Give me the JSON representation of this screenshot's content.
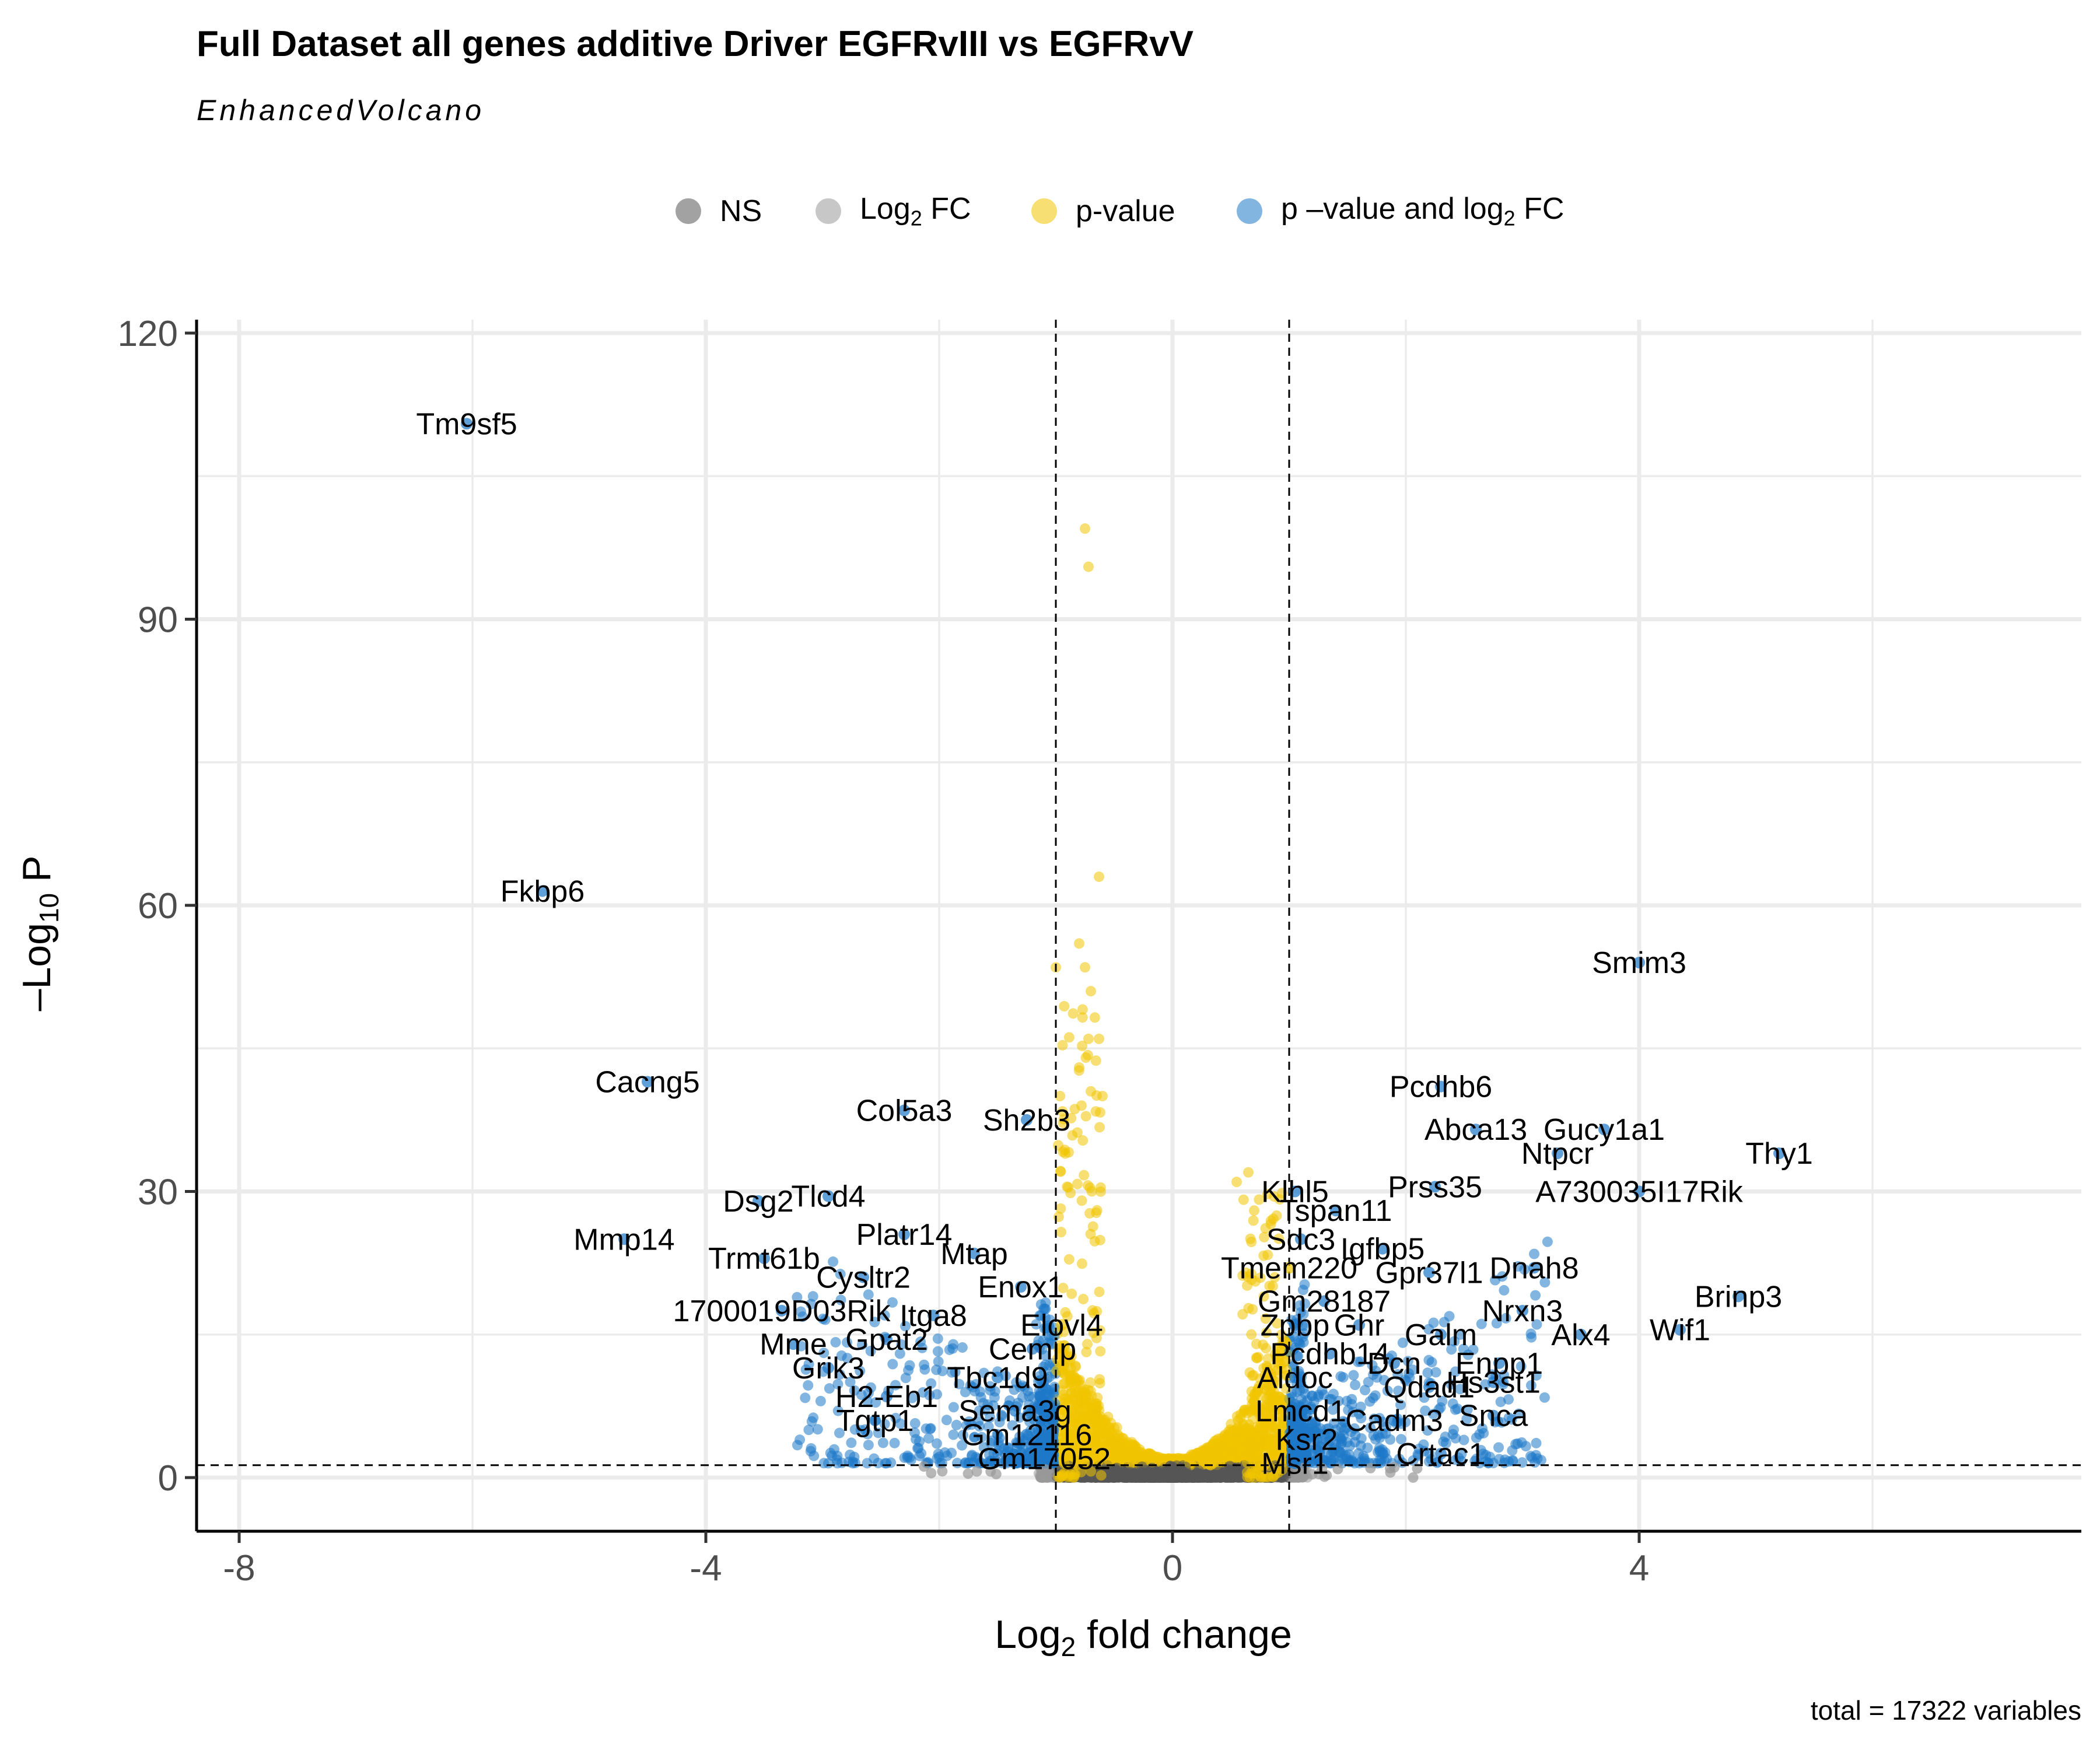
{
  "chart_data": {
    "type": "scatter",
    "title": "Full Dataset all genes additive Driver EGFRvIII vs EGFRvV",
    "subtitle": "EnhancedVolcano",
    "caption": "total = 17322 variables",
    "xlabel": {
      "pre": "Log",
      "sub": "2",
      "post": " fold change"
    },
    "ylabel": {
      "pre": "–Log",
      "sub": "10",
      "post": " P"
    },
    "xlim": [
      -8.3,
      7.8
    ],
    "ylim": [
      -5.5,
      122
    ],
    "xticks": [
      -8,
      -4,
      0,
      4
    ],
    "yticks": [
      0,
      30,
      60,
      90,
      120
    ],
    "grid": true,
    "legend_position": "top",
    "thresholds": {
      "fc": [
        -1,
        1
      ],
      "p": 1.3
    },
    "colors": {
      "NS": "#555555",
      "FC": "#999999",
      "P": "#f0c400",
      "both": "#1d78c8"
    },
    "legend": [
      {
        "key": "NS",
        "pre": "NS",
        "sub": "",
        "post": ""
      },
      {
        "key": "FC",
        "pre": "Log",
        "sub": "2",
        "post": " FC"
      },
      {
        "key": "P",
        "pre": "p-value",
        "sub": "",
        "post": ""
      },
      {
        "key": "both",
        "pre": "p –value and log",
        "sub": "2",
        "post": " FC"
      }
    ],
    "labeled_points": [
      {
        "gene": "Tm9sf5",
        "x": -6.05,
        "y": 110.5
      },
      {
        "gene": "Fkbp6",
        "x": -5.4,
        "y": 61.5
      },
      {
        "gene": "Cacng5",
        "x": -4.5,
        "y": 41.5
      },
      {
        "gene": "Col5a3",
        "x": -2.3,
        "y": 38.5
      },
      {
        "gene": "Sh2b3",
        "x": -1.25,
        "y": 37.5
      },
      {
        "gene": "Dsg2",
        "x": -3.55,
        "y": 29.0
      },
      {
        "gene": "Tlcd4",
        "x": -2.95,
        "y": 29.5
      },
      {
        "gene": "Mmp14",
        "x": -4.7,
        "y": 25.0
      },
      {
        "gene": "Platr14",
        "x": -2.3,
        "y": 25.5
      },
      {
        "gene": "Mtap",
        "x": -1.7,
        "y": 23.5
      },
      {
        "gene": "Trmt61b",
        "x": -3.5,
        "y": 23.0
      },
      {
        "gene": "Cysltr2",
        "x": -2.65,
        "y": 21.0
      },
      {
        "gene": "Enox1",
        "x": -1.3,
        "y": 20.0
      },
      {
        "gene": "1700019D03Rik",
        "x": -3.35,
        "y": 17.5
      },
      {
        "gene": "Itga8",
        "x": -2.05,
        "y": 17.0
      },
      {
        "gene": "Elovl4",
        "x": -0.95,
        "y": 16.0
      },
      {
        "gene": "Mme",
        "x": -3.25,
        "y": 14.0
      },
      {
        "gene": "Gpat2",
        "x": -2.45,
        "y": 14.5
      },
      {
        "gene": "Cemip",
        "x": -1.2,
        "y": 13.5
      },
      {
        "gene": "Grik3",
        "x": -2.95,
        "y": 11.5
      },
      {
        "gene": "Tbc1d9",
        "x": -1.5,
        "y": 10.5
      },
      {
        "gene": "H2-Eb1",
        "x": -2.45,
        "y": 8.5
      },
      {
        "gene": "Sema3g",
        "x": -1.35,
        "y": 7.0
      },
      {
        "gene": "Tgtp1",
        "x": -2.55,
        "y": 6.0
      },
      {
        "gene": "Gm12116",
        "x": -1.25,
        "y": 4.5
      },
      {
        "gene": "Gm17052",
        "x": -1.1,
        "y": 2.0
      },
      {
        "gene": "Klhl5",
        "x": 1.05,
        "y": 30.0
      },
      {
        "gene": "Sdc3",
        "x": 1.1,
        "y": 25.0
      },
      {
        "gene": "Tmem220",
        "x": 1.0,
        "y": 22.0
      },
      {
        "gene": "Gm28187",
        "x": 1.3,
        "y": 18.5
      },
      {
        "gene": "Zpbp",
        "x": 1.05,
        "y": 16.0
      },
      {
        "gene": "Ghr",
        "x": 1.6,
        "y": 16.0
      },
      {
        "gene": "Pcdhb14",
        "x": 1.35,
        "y": 13.0
      },
      {
        "gene": "Aldoc",
        "x": 1.05,
        "y": 10.5
      },
      {
        "gene": "Lmcd1",
        "x": 1.1,
        "y": 7.0
      },
      {
        "gene": "Ksr2",
        "x": 1.15,
        "y": 4.0
      },
      {
        "gene": "Msr1",
        "x": 1.05,
        "y": 1.5
      },
      {
        "gene": "Pcdhb6",
        "x": 2.3,
        "y": 41.0
      },
      {
        "gene": "Abca13",
        "x": 2.6,
        "y": 36.5
      },
      {
        "gene": "Gucy1a1",
        "x": 3.7,
        "y": 36.5
      },
      {
        "gene": "Ntpcr",
        "x": 3.3,
        "y": 34.0
      },
      {
        "gene": "Thy1",
        "x": 5.2,
        "y": 34.0
      },
      {
        "gene": "Prss35",
        "x": 2.25,
        "y": 30.5
      },
      {
        "gene": "A730035I17Rik",
        "x": 4.0,
        "y": 30.0
      },
      {
        "gene": "Tspan11",
        "x": 1.4,
        "y": 28.0
      },
      {
        "gene": "Igfbp5",
        "x": 1.8,
        "y": 24.0
      },
      {
        "gene": "Gpr37l1",
        "x": 2.2,
        "y": 21.5
      },
      {
        "gene": "Dnah8",
        "x": 3.1,
        "y": 22.0
      },
      {
        "gene": "Brinp3",
        "x": 4.85,
        "y": 19.0
      },
      {
        "gene": "Nrxn3",
        "x": 3.0,
        "y": 17.5
      },
      {
        "gene": "Galm",
        "x": 2.3,
        "y": 15.0
      },
      {
        "gene": "Alx4",
        "x": 3.5,
        "y": 15.0
      },
      {
        "gene": "Wif1",
        "x": 4.35,
        "y": 15.5
      },
      {
        "gene": "Dcn",
        "x": 1.9,
        "y": 12.0
      },
      {
        "gene": "Enpp1",
        "x": 2.8,
        "y": 12.0
      },
      {
        "gene": "Qdad1",
        "x": 2.2,
        "y": 9.5
      },
      {
        "gene": "Hs3st1",
        "x": 2.75,
        "y": 10.0
      },
      {
        "gene": "Snca",
        "x": 2.75,
        "y": 6.5
      },
      {
        "gene": "Cadm3",
        "x": 1.9,
        "y": 6.0
      },
      {
        "gene": "Crtac1",
        "x": 2.3,
        "y": 2.5
      },
      {
        "gene": "Smim3",
        "x": 4.0,
        "y": 54.0
      }
    ]
  }
}
